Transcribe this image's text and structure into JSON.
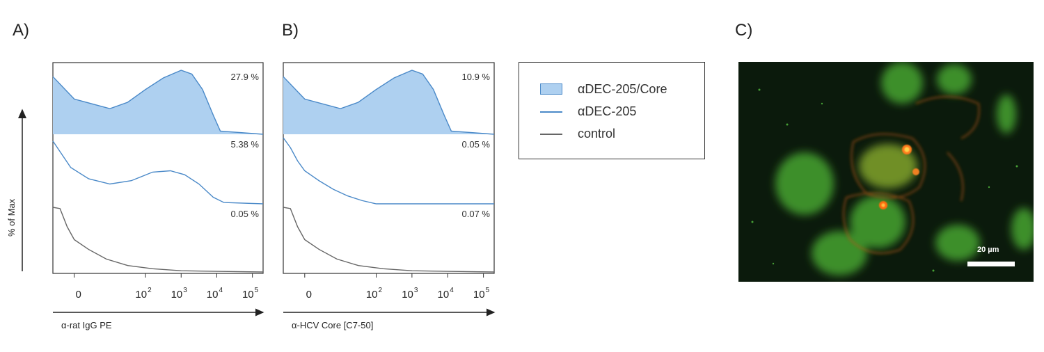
{
  "panels": {
    "a": "A)",
    "b": "B)",
    "c": "C)"
  },
  "y_axis_label": "% of Max",
  "x_tick_labels": [
    "0",
    "10",
    "2",
    "10",
    "3",
    "10",
    "4",
    "10",
    "5"
  ],
  "legend": {
    "items": [
      "αDEC-205/Core",
      "αDEC-205",
      "control"
    ]
  },
  "colors": {
    "fill": "#aed0f0",
    "line": "#4a89c8",
    "control": "#666666"
  },
  "chart_data": [
    {
      "type": "area",
      "panel": "A)",
      "xlabel": "α-rat IgG PE",
      "ylabel": "% of Max",
      "x_ticks": [
        "0",
        "10^2",
        "10^3",
        "10^4",
        "10^5"
      ],
      "series": [
        {
          "name": "αDEC-205/Core",
          "percent": "27.9 %",
          "filled": true,
          "x": [
            -0.6,
            0,
            1,
            1.5,
            2,
            2.5,
            3,
            3.3,
            3.6,
            3.9,
            4.1,
            5.3
          ],
          "y": [
            90,
            55,
            40,
            50,
            70,
            88,
            100,
            94,
            70,
            30,
            5,
            0
          ]
        },
        {
          "name": "αDEC-205",
          "percent": "5.38 %",
          "filled": false,
          "x": [
            -0.6,
            -0.1,
            0.4,
            1,
            1.6,
            2.2,
            2.7,
            3.1,
            3.5,
            3.9,
            4.2,
            5.3
          ],
          "y": [
            95,
            55,
            38,
            30,
            35,
            48,
            50,
            44,
            30,
            10,
            2,
            0
          ]
        },
        {
          "name": "control",
          "percent": "0.05 %",
          "filled": false,
          "x": [
            -0.6,
            -0.4,
            -0.2,
            0,
            0.4,
            0.9,
            1.5,
            2.2,
            3,
            4,
            5.3
          ],
          "y": [
            100,
            98,
            70,
            50,
            35,
            20,
            10,
            5,
            2,
            1,
            0
          ]
        }
      ]
    },
    {
      "type": "area",
      "panel": "B)",
      "xlabel": "α-HCV Core [C7-50]",
      "ylabel": "% of Max",
      "x_ticks": [
        "0",
        "10^2",
        "10^3",
        "10^4",
        "10^5"
      ],
      "series": [
        {
          "name": "αDEC-205/Core",
          "percent": "10.9 %",
          "filled": true,
          "x": [
            -0.6,
            0,
            1,
            1.5,
            2,
            2.5,
            3,
            3.3,
            3.6,
            3.9,
            4.1,
            5.3
          ],
          "y": [
            90,
            55,
            40,
            50,
            70,
            88,
            100,
            94,
            70,
            30,
            5,
            0
          ]
        },
        {
          "name": "αDEC-205",
          "percent": "0.05 %",
          "filled": false,
          "x": [
            -0.6,
            -0.4,
            -0.2,
            0,
            0.4,
            0.8,
            1.2,
            1.6,
            2,
            5.3
          ],
          "y": [
            100,
            85,
            65,
            50,
            35,
            22,
            12,
            5,
            0,
            0
          ]
        },
        {
          "name": "control",
          "percent": "0.07 %",
          "filled": false,
          "x": [
            -0.6,
            -0.4,
            -0.2,
            0,
            0.4,
            0.9,
            1.5,
            2.2,
            3,
            4,
            5.3
          ],
          "y": [
            100,
            98,
            70,
            50,
            35,
            20,
            10,
            5,
            2,
            1,
            0
          ]
        }
      ]
    }
  ],
  "micrograph": {
    "scale_label": "20 µm"
  }
}
